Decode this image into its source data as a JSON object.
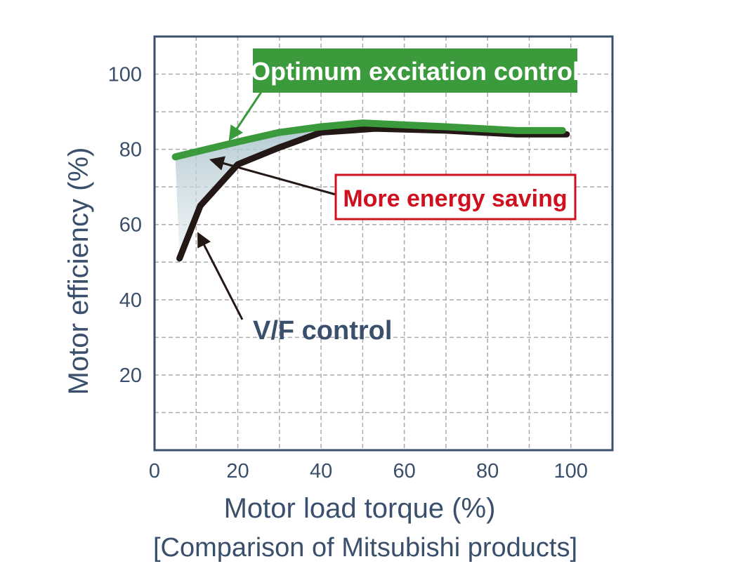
{
  "chart_data": {
    "type": "line",
    "xlabel": "Motor load torque (%)",
    "ylabel": "Motor efficiency (%)",
    "caption": "[Comparison of Mitsubishi products]",
    "xlim": [
      0,
      110
    ],
    "ylim": [
      0,
      110
    ],
    "xticks": [
      "0",
      "20",
      "40",
      "60",
      "80",
      "100"
    ],
    "yticks": [
      "20",
      "40",
      "60",
      "80",
      "100"
    ],
    "grid": true,
    "series": [
      {
        "name": "Optimum excitation control",
        "color": "#3a9a3c",
        "x": [
          5,
          20,
          30,
          40,
          50,
          60,
          70,
          87,
          98
        ],
        "y": [
          78,
          82,
          84.5,
          86,
          87,
          86.5,
          86,
          85,
          85
        ]
      },
      {
        "name": "V/F control",
        "color": "#231815",
        "x": [
          6,
          11,
          20,
          30,
          40,
          53,
          70,
          87,
          99
        ],
        "y": [
          51,
          65,
          76,
          80.5,
          84.5,
          85.5,
          85,
          84,
          84
        ]
      }
    ],
    "annotations": [
      {
        "text": "More energy saving",
        "color": "#d0101e"
      }
    ]
  }
}
